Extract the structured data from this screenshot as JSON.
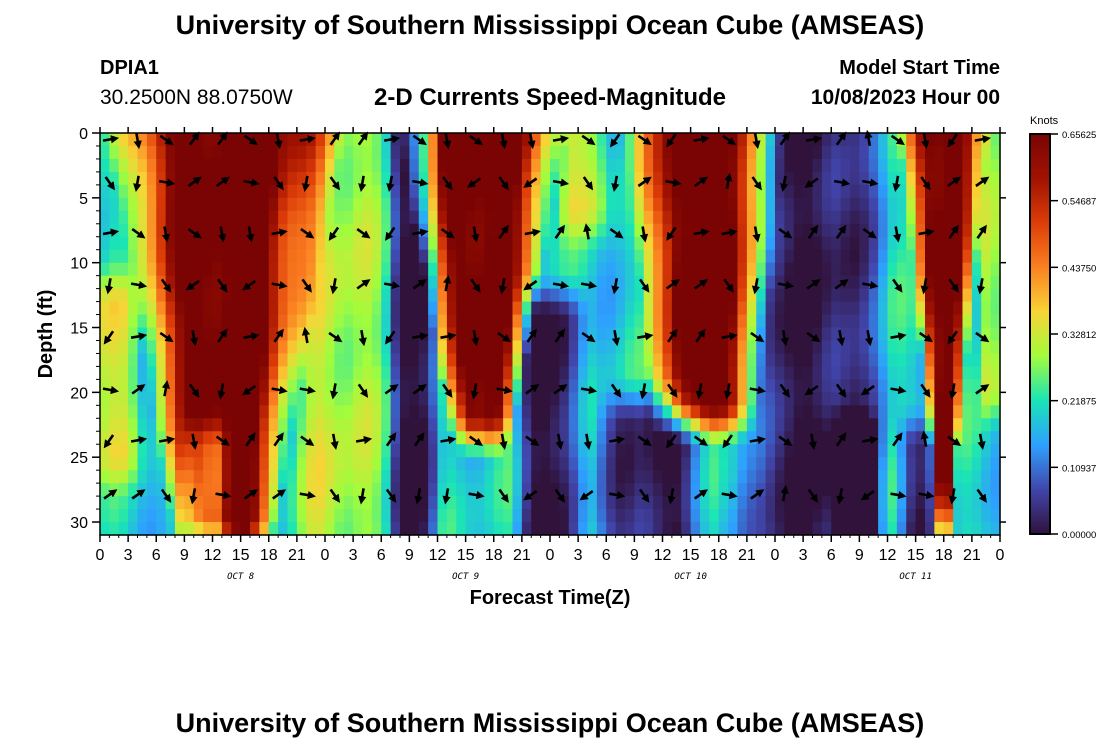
{
  "header": {
    "title": "University of Southern Mississippi Ocean Cube (AMSEAS)",
    "station_id": "DPIA1",
    "coords": "30.2500N  88.0750W",
    "chart_title": "2-D Currents Speed-Magnitude",
    "model_start_label": "Model Start Time",
    "model_start_value": "10/08/2023 Hour 00"
  },
  "footer": {
    "title": "University of Southern Mississippi Ocean Cube (AMSEAS)"
  },
  "chart_data": {
    "type": "heatmap",
    "title": "2-D Currents Speed-Magnitude",
    "xlabel": "Forecast Time(Z)",
    "ylabel": "Depth (ft)",
    "x_ticks": [
      "0",
      "3",
      "6",
      "9",
      "12",
      "15",
      "18",
      "21",
      "0",
      "3",
      "6",
      "9",
      "12",
      "15",
      "18",
      "21",
      "0",
      "3",
      "6",
      "9",
      "12",
      "15",
      "18",
      "21",
      "0",
      "3",
      "6",
      "9",
      "12",
      "15",
      "18",
      "21",
      "0"
    ],
    "x_range_hours": [
      0,
      96
    ],
    "day_labels": [
      {
        "label": "OCT 8",
        "hour": 15
      },
      {
        "label": "OCT 9",
        "hour": 39
      },
      {
        "label": "OCT 10",
        "hour": 63
      },
      {
        "label": "OCT 11",
        "hour": 87
      }
    ],
    "y_ticks": [
      0,
      5,
      10,
      15,
      20,
      25,
      30
    ],
    "y_range_ft": [
      0,
      31
    ],
    "colorbar": {
      "label": "Knots",
      "tick_labels": [
        "0.65625",
        "0.54687",
        "0.43750",
        "0.32812",
        "0.21875",
        "0.10937",
        "0.00000"
      ],
      "min": 0,
      "max": 0.65625,
      "colors": [
        "#30123b",
        "#4145ab",
        "#2ea0ff",
        "#1ae4b6",
        "#a2fc3c",
        "#f8d436",
        "#fb8022",
        "#dd3d08",
        "#a11201",
        "#7a0403"
      ]
    },
    "high_speed_bands": [
      {
        "start_hour": 8,
        "end_hour": 18.5,
        "depth_top": 0,
        "depth_bottom": 30,
        "taper": 0.55
      },
      {
        "start_hour": 37,
        "end_hour": 44.5,
        "depth_top": 0,
        "depth_bottom": 22,
        "taper": 0.6
      },
      {
        "start_hour": 61,
        "end_hour": 68,
        "depth_top": 0,
        "depth_bottom": 21,
        "taper": 0.3
      },
      {
        "start_hour": 88,
        "end_hour": 92,
        "depth_top": 0,
        "depth_bottom": 30,
        "taper": 0.85
      }
    ],
    "moderate_bands": [
      {
        "start_hour": 23,
        "end_hour": 28,
        "depth_top": 0,
        "depth_bottom": 31
      },
      {
        "start_hour": 0,
        "end_hour": 3,
        "depth_top": 13,
        "depth_bottom": 25
      },
      {
        "start_hour": 50,
        "end_hour": 53,
        "depth_top": 0,
        "depth_bottom": 6
      },
      {
        "start_hour": 94.5,
        "end_hour": 96,
        "depth_top": 0,
        "depth_bottom": 20
      }
    ],
    "low_speed_bands": [
      {
        "start_hour": 32,
        "end_hour": 35,
        "depth_top": 0,
        "depth_bottom": 31
      },
      {
        "start_hour": 10,
        "end_hour": 12.5,
        "depth_top": 24,
        "depth_bottom": 31
      },
      {
        "start_hour": 46,
        "end_hour": 50,
        "depth_top": 14,
        "depth_bottom": 31
      },
      {
        "start_hour": 56,
        "end_hour": 62,
        "depth_top": 22,
        "depth_bottom": 31
      },
      {
        "start_hour": 72,
        "end_hour": 80,
        "depth_top": 0,
        "depth_bottom": 31
      },
      {
        "start_hour": 79,
        "end_hour": 82,
        "depth_top": 24,
        "depth_bottom": 31
      },
      {
        "start_hour": 86,
        "end_hour": 88,
        "depth_top": 24,
        "depth_bottom": 31
      }
    ],
    "arrow_rows_depth_ft": [
      0.5,
      3.8,
      7.7,
      11.7,
      15.7,
      19.8,
      23.7,
      27.9
    ],
    "arrow_hours_step": 3,
    "arrow_direction_pattern_deg": [
      90,
      180,
      135,
      45,
      45,
      135,
      180,
      90,
      45,
      45,
      90,
      135,
      180,
      135,
      180,
      180,
      90,
      135,
      225,
      135,
      225,
      90,
      135,
      180,
      45,
      90,
      45,
      0,
      135,
      180,
      225,
      90
    ]
  }
}
